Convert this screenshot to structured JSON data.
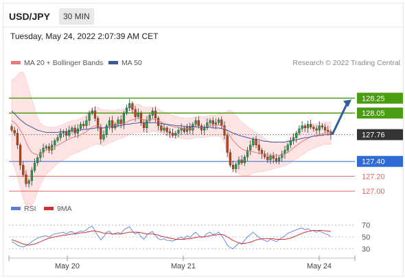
{
  "header": {
    "pair": "USD/JPY",
    "timeframe": "30 MIN",
    "datetime": "Tuesday, May 24, 2022 2:07:39 AM CET"
  },
  "legend": {
    "ma20_label": "MA 20 + Bollinger Bands",
    "ma50_label": "MA 50",
    "credit": "Research © 2022 Trading Central",
    "rsi_label": "RSI",
    "rsi9_label": "9MA"
  },
  "colors": {
    "ma20": "#e87c7c",
    "ma50": "#3a5a9a",
    "band_fill": "#fde3e3",
    "candle_up": "#16a34a",
    "candle_down": "#c2410c",
    "resistance": "#4a9c10",
    "support_main": "#2e6bd6",
    "support_minor": "#e06060",
    "current": "#333333",
    "rsi": "#5b7fd8",
    "rsi_ma": "#d03030",
    "arrow": "#2d5e9e"
  },
  "chart_data": [
    {
      "type": "candlestick",
      "y_range": [
        126.9,
        128.65
      ],
      "x_ticks": [
        "May 20",
        "May 21",
        "May 24"
      ],
      "series": [
        {
          "name": "MA 20 + Bollinger Bands"
        },
        {
          "name": "MA 50"
        }
      ],
      "levels": [
        {
          "value": 128.25,
          "label": "128.25",
          "kind": "resistance"
        },
        {
          "value": 128.05,
          "label": "128.05",
          "kind": "resistance"
        },
        {
          "value": 127.76,
          "label": "127.76",
          "kind": "current"
        },
        {
          "value": 127.4,
          "label": "127.40",
          "kind": "support_main"
        },
        {
          "value": 127.2,
          "label": "127.20",
          "kind": "support_minor"
        },
        {
          "value": 127.0,
          "label": "127.00",
          "kind": "support_minor"
        }
      ],
      "closes": [
        127.82,
        127.78,
        127.62,
        127.35,
        127.22,
        127.1,
        127.14,
        127.28,
        127.38,
        127.45,
        127.52,
        127.58,
        127.6,
        127.55,
        127.62,
        127.68,
        127.72,
        127.78,
        127.8,
        127.75,
        127.82,
        127.85,
        127.78,
        127.84,
        127.9,
        127.88,
        127.95,
        128.05,
        128.08,
        127.98,
        127.86,
        127.7,
        127.76,
        127.88,
        127.95,
        127.85,
        127.9,
        127.96,
        127.9,
        128.05,
        128.12,
        128.18,
        128.1,
        128.0,
        128.05,
        127.92,
        127.85,
        127.95,
        128.02,
        128.08,
        127.98,
        127.88,
        127.82,
        127.85,
        127.8,
        127.78,
        127.75,
        127.78,
        127.82,
        127.85,
        127.8,
        127.86,
        127.82,
        127.9,
        127.95,
        127.88,
        127.82,
        127.85,
        127.92,
        127.95,
        127.9,
        127.92,
        127.96,
        127.88,
        127.75,
        127.52,
        127.35,
        127.3,
        127.36,
        127.42,
        127.38,
        127.46,
        127.55,
        127.62,
        127.7,
        127.62,
        127.55,
        127.5,
        127.46,
        127.42,
        127.48,
        127.44,
        127.4,
        127.45,
        127.5,
        127.55,
        127.62,
        127.68,
        127.72,
        127.78,
        127.84,
        127.88,
        127.85,
        127.9,
        127.86,
        127.84,
        127.82,
        127.88,
        127.86,
        127.82,
        127.8,
        127.76
      ],
      "ma20": [
        127.95,
        127.92,
        127.88,
        127.82,
        127.75,
        127.66,
        127.58,
        127.52,
        127.5,
        127.49,
        127.5,
        127.52,
        127.55,
        127.56,
        127.58,
        127.6,
        127.62,
        127.64,
        127.66,
        127.68,
        127.7,
        127.72,
        127.73,
        127.74,
        127.76,
        127.78,
        127.8,
        127.83,
        127.86,
        127.88,
        127.88,
        127.86,
        127.85,
        127.86,
        127.87,
        127.87,
        127.88,
        127.9,
        127.9,
        127.91,
        127.93,
        127.95,
        127.96,
        127.97,
        127.98,
        127.97,
        127.96,
        127.96,
        127.96,
        127.97,
        127.96,
        127.95,
        127.93,
        127.91,
        127.9,
        127.88,
        127.87,
        127.86,
        127.86,
        127.85,
        127.84,
        127.84,
        127.84,
        127.85,
        127.86,
        127.86,
        127.86,
        127.86,
        127.87,
        127.88,
        127.88,
        127.88,
        127.89,
        127.88,
        127.85,
        127.8,
        127.74,
        127.68,
        127.64,
        127.6,
        127.57,
        127.55,
        127.54,
        127.53,
        127.53,
        127.52,
        127.51,
        127.5,
        127.49,
        127.48,
        127.48,
        127.48,
        127.48,
        127.48,
        127.49,
        127.5,
        127.52,
        127.55,
        127.58,
        127.61,
        127.64,
        127.67,
        127.69,
        127.71,
        127.73,
        127.74,
        127.75,
        127.76,
        127.77,
        127.78,
        127.78,
        127.78
      ],
      "ma50": [
        128.08,
        128.04,
        128.0,
        127.96,
        127.93,
        127.9,
        127.88,
        127.86,
        127.84,
        127.82,
        127.81,
        127.8,
        127.79,
        127.79,
        127.79,
        127.79,
        127.79,
        127.8,
        127.8,
        127.8,
        127.81,
        127.81,
        127.81,
        127.82,
        127.82,
        127.83,
        127.83,
        127.84,
        127.84,
        127.85,
        127.85,
        127.85,
        127.85,
        127.86,
        127.86,
        127.87,
        127.87,
        127.88,
        127.88,
        127.89,
        127.9,
        127.9,
        127.91,
        127.91,
        127.92,
        127.92,
        127.92,
        127.92,
        127.92,
        127.92,
        127.92,
        127.91,
        127.91,
        127.9,
        127.9,
        127.89,
        127.89,
        127.88,
        127.88,
        127.88,
        127.87,
        127.87,
        127.87,
        127.87,
        127.87,
        127.86,
        127.86,
        127.86,
        127.86,
        127.86,
        127.85,
        127.85,
        127.85,
        127.84,
        127.83,
        127.82,
        127.8,
        127.78,
        127.77,
        127.75,
        127.74,
        127.73,
        127.72,
        127.71,
        127.7,
        127.7,
        127.69,
        127.68,
        127.67,
        127.67,
        127.66,
        127.66,
        127.66,
        127.66,
        127.66,
        127.66,
        127.67,
        127.67,
        127.68,
        127.69,
        127.7,
        127.71,
        127.72,
        127.72,
        127.73,
        127.74,
        127.74,
        127.75,
        127.75,
        127.76,
        127.76,
        127.76
      ],
      "band_width": [
        0.55,
        0.6,
        0.68,
        0.78,
        0.85,
        0.85,
        0.8,
        0.72,
        0.62,
        0.5,
        0.42,
        0.36,
        0.32,
        0.3,
        0.28,
        0.26,
        0.25,
        0.24,
        0.24,
        0.24,
        0.23,
        0.23,
        0.22,
        0.22,
        0.22,
        0.22,
        0.23,
        0.24,
        0.25,
        0.25,
        0.25,
        0.24,
        0.24,
        0.23,
        0.22,
        0.21,
        0.2,
        0.2,
        0.19,
        0.19,
        0.19,
        0.19,
        0.19,
        0.19,
        0.19,
        0.18,
        0.17,
        0.17,
        0.17,
        0.16,
        0.16,
        0.16,
        0.15,
        0.15,
        0.15,
        0.15,
        0.15,
        0.15,
        0.14,
        0.14,
        0.14,
        0.14,
        0.14,
        0.14,
        0.14,
        0.14,
        0.14,
        0.14,
        0.14,
        0.14,
        0.14,
        0.14,
        0.15,
        0.16,
        0.2,
        0.28,
        0.35,
        0.38,
        0.38,
        0.37,
        0.36,
        0.35,
        0.33,
        0.31,
        0.29,
        0.27,
        0.25,
        0.24,
        0.22,
        0.2,
        0.19,
        0.18,
        0.17,
        0.16,
        0.16,
        0.16,
        0.16,
        0.17,
        0.17,
        0.18,
        0.18,
        0.18,
        0.18,
        0.17,
        0.17,
        0.16,
        0.16,
        0.16,
        0.15,
        0.15,
        0.15,
        0.15
      ],
      "arrow": {
        "from": {
          "index": 111,
          "value": 127.76
        },
        "to_value": 128.25
      }
    },
    {
      "type": "line",
      "series": [
        {
          "name": "RSI"
        },
        {
          "name": "9MA"
        }
      ],
      "y_range": [
        20,
        80
      ],
      "y_ticks": [
        70,
        50,
        30
      ],
      "rsi": [
        42,
        40,
        36,
        34,
        33,
        35,
        38,
        42,
        45,
        48,
        50,
        51,
        52,
        50,
        53,
        55,
        56,
        57,
        58,
        55,
        58,
        59,
        56,
        58,
        60,
        59,
        62,
        66,
        68,
        60,
        52,
        45,
        50,
        58,
        60,
        54,
        56,
        58,
        55,
        62,
        65,
        67,
        60,
        55,
        58,
        50,
        46,
        53,
        57,
        59,
        52,
        47,
        45,
        47,
        44,
        44,
        43,
        45,
        48,
        50,
        47,
        52,
        49,
        54,
        58,
        53,
        49,
        51,
        56,
        58,
        54,
        55,
        58,
        52,
        45,
        36,
        32,
        30,
        35,
        40,
        38,
        44,
        50,
        54,
        58,
        53,
        49,
        46,
        44,
        42,
        46,
        44,
        42,
        45,
        49,
        52,
        56,
        58,
        60,
        62,
        64,
        65,
        62,
        64,
        61,
        60,
        58,
        60,
        58,
        55,
        54,
        50
      ],
      "rsi_ma": [
        45,
        44,
        42,
        40,
        38,
        37,
        36,
        37,
        38,
        40,
        42,
        44,
        46,
        48,
        49,
        50,
        51,
        52,
        53,
        53,
        54,
        55,
        55,
        56,
        57,
        57,
        58,
        59,
        60,
        60,
        59,
        58,
        56,
        56,
        56,
        55,
        55,
        55,
        55,
        56,
        57,
        58,
        58,
        58,
        58,
        57,
        56,
        55,
        55,
        55,
        54,
        53,
        51,
        50,
        49,
        48,
        47,
        46,
        46,
        46,
        46,
        47,
        47,
        48,
        49,
        50,
        50,
        50,
        51,
        52,
        53,
        53,
        54,
        54,
        53,
        50,
        47,
        44,
        42,
        40,
        39,
        39,
        40,
        41,
        43,
        45,
        46,
        47,
        47,
        47,
        47,
        47,
        46,
        46,
        46,
        46,
        47,
        48,
        50,
        52,
        54,
        56,
        58,
        59,
        60,
        61,
        61,
        61,
        61,
        60,
        60,
        59
      ]
    }
  ]
}
